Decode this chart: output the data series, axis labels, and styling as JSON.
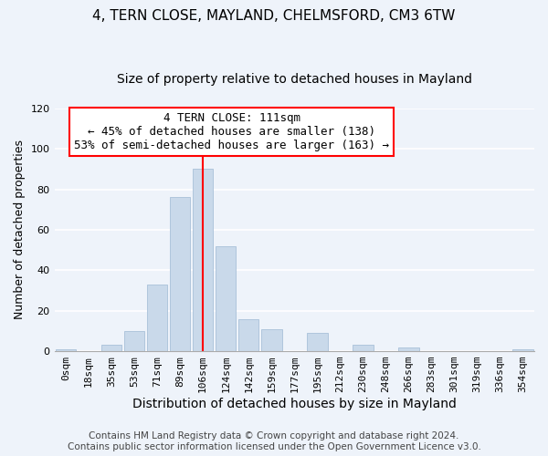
{
  "title": "4, TERN CLOSE, MAYLAND, CHELMSFORD, CM3 6TW",
  "subtitle": "Size of property relative to detached houses in Mayland",
  "xlabel": "Distribution of detached houses by size in Mayland",
  "ylabel": "Number of detached properties",
  "bar_color": "#c9d9ea",
  "bar_edge_color": "#a8c0d8",
  "bar_labels": [
    "0sqm",
    "18sqm",
    "35sqm",
    "53sqm",
    "71sqm",
    "89sqm",
    "106sqm",
    "124sqm",
    "142sqm",
    "159sqm",
    "177sqm",
    "195sqm",
    "212sqm",
    "230sqm",
    "248sqm",
    "266sqm",
    "283sqm",
    "301sqm",
    "319sqm",
    "336sqm",
    "354sqm"
  ],
  "bar_values": [
    1,
    0,
    3,
    10,
    33,
    76,
    90,
    52,
    16,
    11,
    0,
    9,
    0,
    3,
    0,
    2,
    0,
    0,
    0,
    0,
    1
  ],
  "ylim": [
    0,
    120
  ],
  "yticks": [
    0,
    20,
    40,
    60,
    80,
    100,
    120
  ],
  "property_line_x": 6,
  "property_line_label": "4 TERN CLOSE: 111sqm",
  "annotation_line1": "← 45% of detached houses are smaller (138)",
  "annotation_line2": "53% of semi-detached houses are larger (163) →",
  "footer_line1": "Contains HM Land Registry data © Crown copyright and database right 2024.",
  "footer_line2": "Contains public sector information licensed under the Open Government Licence v3.0.",
  "background_color": "#eef3fa",
  "grid_color": "#ffffff",
  "title_fontsize": 11,
  "subtitle_fontsize": 10,
  "xlabel_fontsize": 10,
  "ylabel_fontsize": 9,
  "tick_fontsize": 8,
  "annot_fontsize": 9,
  "footer_fontsize": 7.5
}
